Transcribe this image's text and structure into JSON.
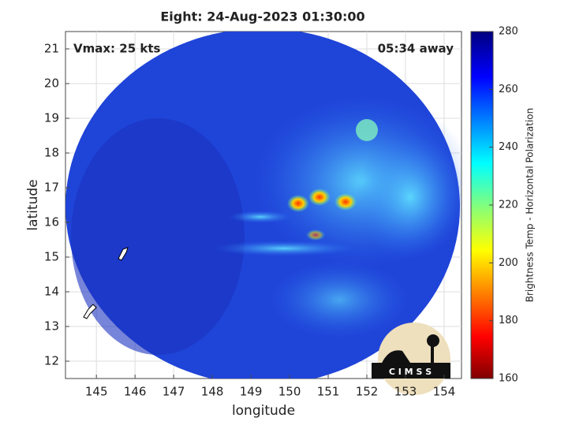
{
  "chart_data": {
    "type": "image",
    "title": "Eight: 24-Aug-2023 01:30:00",
    "annotations": {
      "left": "Vmax: 25 kts",
      "right": "05:34 away"
    },
    "xlabel": "longitude",
    "ylabel": "latitude",
    "xlim": [
      144.2,
      154.45
    ],
    "ylim": [
      11.5,
      21.5
    ],
    "xticks": [
      145,
      146,
      147,
      148,
      149,
      150,
      151,
      152,
      153,
      154
    ],
    "yticks": [
      12,
      13,
      14,
      15,
      16,
      17,
      18,
      19,
      20,
      21
    ],
    "grid": true,
    "colorbar": {
      "label": "Brightness Temp - Horizontal Polarization",
      "lim": [
        160,
        280
      ],
      "ticks": [
        160,
        180,
        200,
        220,
        240,
        260,
        280
      ]
    },
    "logo_text": "C I M S S"
  }
}
